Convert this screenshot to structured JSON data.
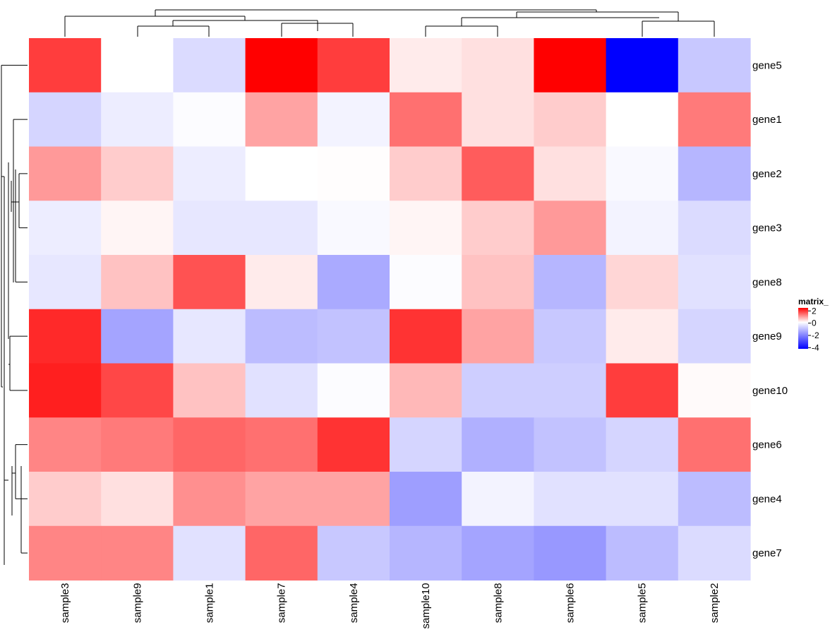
{
  "chart_data": {
    "type": "heatmap",
    "columns": [
      "sample3",
      "sample9",
      "sample1",
      "sample7",
      "sample4",
      "sample10",
      "sample8",
      "sample6",
      "sample5",
      "sample2"
    ],
    "rows": [
      "gene5",
      "gene1",
      "gene2",
      "gene3",
      "gene8",
      "gene9",
      "gene10",
      "gene6",
      "gene4",
      "gene7"
    ],
    "values": [
      [
        1.9,
        0.0,
        -0.6,
        2.5,
        1.9,
        0.2,
        0.3,
        2.5,
        -4.2,
        -0.9
      ],
      [
        -0.7,
        -0.3,
        -0.05,
        0.9,
        -0.2,
        1.4,
        0.3,
        0.5,
        0.0,
        1.3
      ],
      [
        1.0,
        0.5,
        -0.3,
        0.0,
        0.02,
        0.5,
        1.6,
        0.3,
        -0.1,
        -1.2
      ],
      [
        -0.3,
        0.1,
        -0.4,
        -0.4,
        -0.1,
        0.1,
        0.5,
        1.0,
        -0.2,
        -0.6
      ],
      [
        -0.4,
        0.6,
        1.7,
        0.2,
        -1.4,
        -0.05,
        0.6,
        -1.2,
        0.4,
        -0.5
      ],
      [
        2.1,
        -1.5,
        -0.4,
        -1.1,
        -1.0,
        2.0,
        0.9,
        -0.9,
        0.2,
        -0.7
      ],
      [
        2.2,
        1.8,
        0.6,
        -0.5,
        -0.05,
        0.7,
        -0.8,
        -0.8,
        1.9,
        0.05
      ],
      [
        1.2,
        1.3,
        1.5,
        1.4,
        2.0,
        -0.7,
        -1.3,
        -1.0,
        -0.7,
        1.4
      ],
      [
        0.5,
        0.3,
        1.1,
        0.9,
        0.9,
        -1.6,
        -0.2,
        -0.5,
        -0.5,
        -1.1
      ],
      [
        1.2,
        1.2,
        -0.5,
        1.5,
        -0.9,
        -1.2,
        -1.5,
        -1.7,
        -1.1,
        -0.6
      ]
    ],
    "legend": {
      "title": "matrix_",
      "ticks": [
        2,
        0,
        -2,
        -4
      ],
      "position": "right",
      "range": [
        -4.2,
        2.5
      ]
    },
    "colors": {
      "low": "#0000ff",
      "mid": "#ffffff",
      "high": "#ff0000"
    },
    "column_dendrogram": true,
    "row_dendrogram": true,
    "grid": false
  }
}
